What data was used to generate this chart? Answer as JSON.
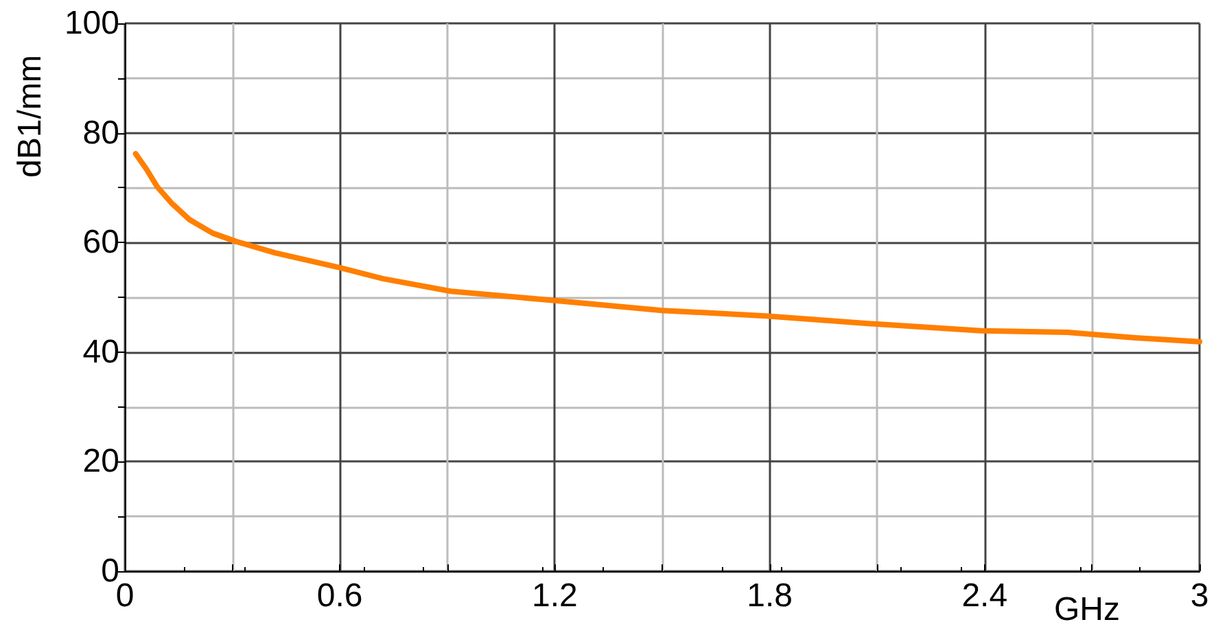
{
  "chart_data": {
    "type": "line",
    "xlabel": "GHz",
    "ylabel": "dB1/mm",
    "x": [
      0.03,
      0.06,
      0.09,
      0.13,
      0.18,
      0.245,
      0.31,
      0.42,
      0.6,
      0.72,
      0.91,
      1.2,
      1.5,
      1.79,
      2.1,
      2.39,
      2.63,
      2.82,
      3.0
    ],
    "series": [
      {
        "color": "#ff7f00",
        "values": [
          76.2,
          73.4,
          70.2,
          67.2,
          64.2,
          61.7,
          60.2,
          58.1,
          55.4,
          53.4,
          51.1,
          49.4,
          47.6,
          46.6,
          45.1,
          43.9,
          43.6,
          42.6,
          41.9
        ]
      }
    ],
    "xlim": [
      0,
      3
    ],
    "ylim": [
      0,
      100
    ],
    "xticks": [
      0,
      {
        "value": 0.3,
        "label": null
      },
      0.6,
      {
        "value": 0.9,
        "label": null
      },
      1.2,
      {
        "value": 1.5,
        "label": null
      },
      1.8,
      {
        "value": 2.1,
        "label": null
      },
      2.4,
      {
        "value": 2.7,
        "label": null
      },
      3
    ],
    "yticks": [
      0,
      {
        "value": 10,
        "label": null
      },
      20,
      {
        "value": 30,
        "label": null
      },
      40,
      {
        "value": 50,
        "label": null
      },
      60,
      {
        "value": 70,
        "label": null
      },
      80,
      {
        "value": 90,
        "label": null
      },
      100
    ],
    "grid": true,
    "marker": "none",
    "line_style": "solid"
  }
}
